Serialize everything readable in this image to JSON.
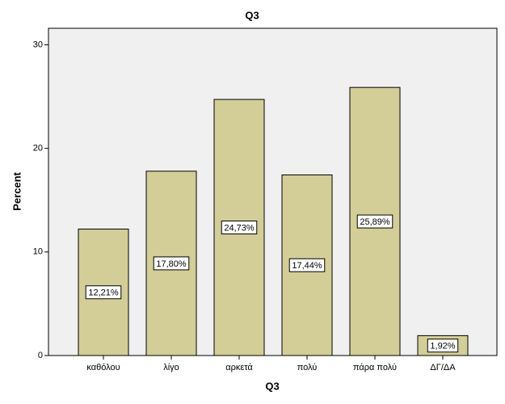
{
  "chart_data": {
    "type": "bar",
    "title": "Q3",
    "x_label": "Q3",
    "y_label": "Percent",
    "categories": [
      "καθόλου",
      "λίγο",
      "αρκετά",
      "πολύ",
      "πάρα πολύ",
      "ΔΓ/ΔΑ"
    ],
    "values": [
      12.21,
      17.8,
      24.73,
      17.44,
      25.89,
      1.92
    ],
    "value_labels": [
      "12,21%",
      "17,80%",
      "24,73%",
      "17,44%",
      "25,89%",
      "1,92%"
    ],
    "color": "#d3ce97",
    "ylim": [
      0,
      31.6
    ],
    "yticks": [
      0,
      10,
      20,
      30
    ]
  }
}
